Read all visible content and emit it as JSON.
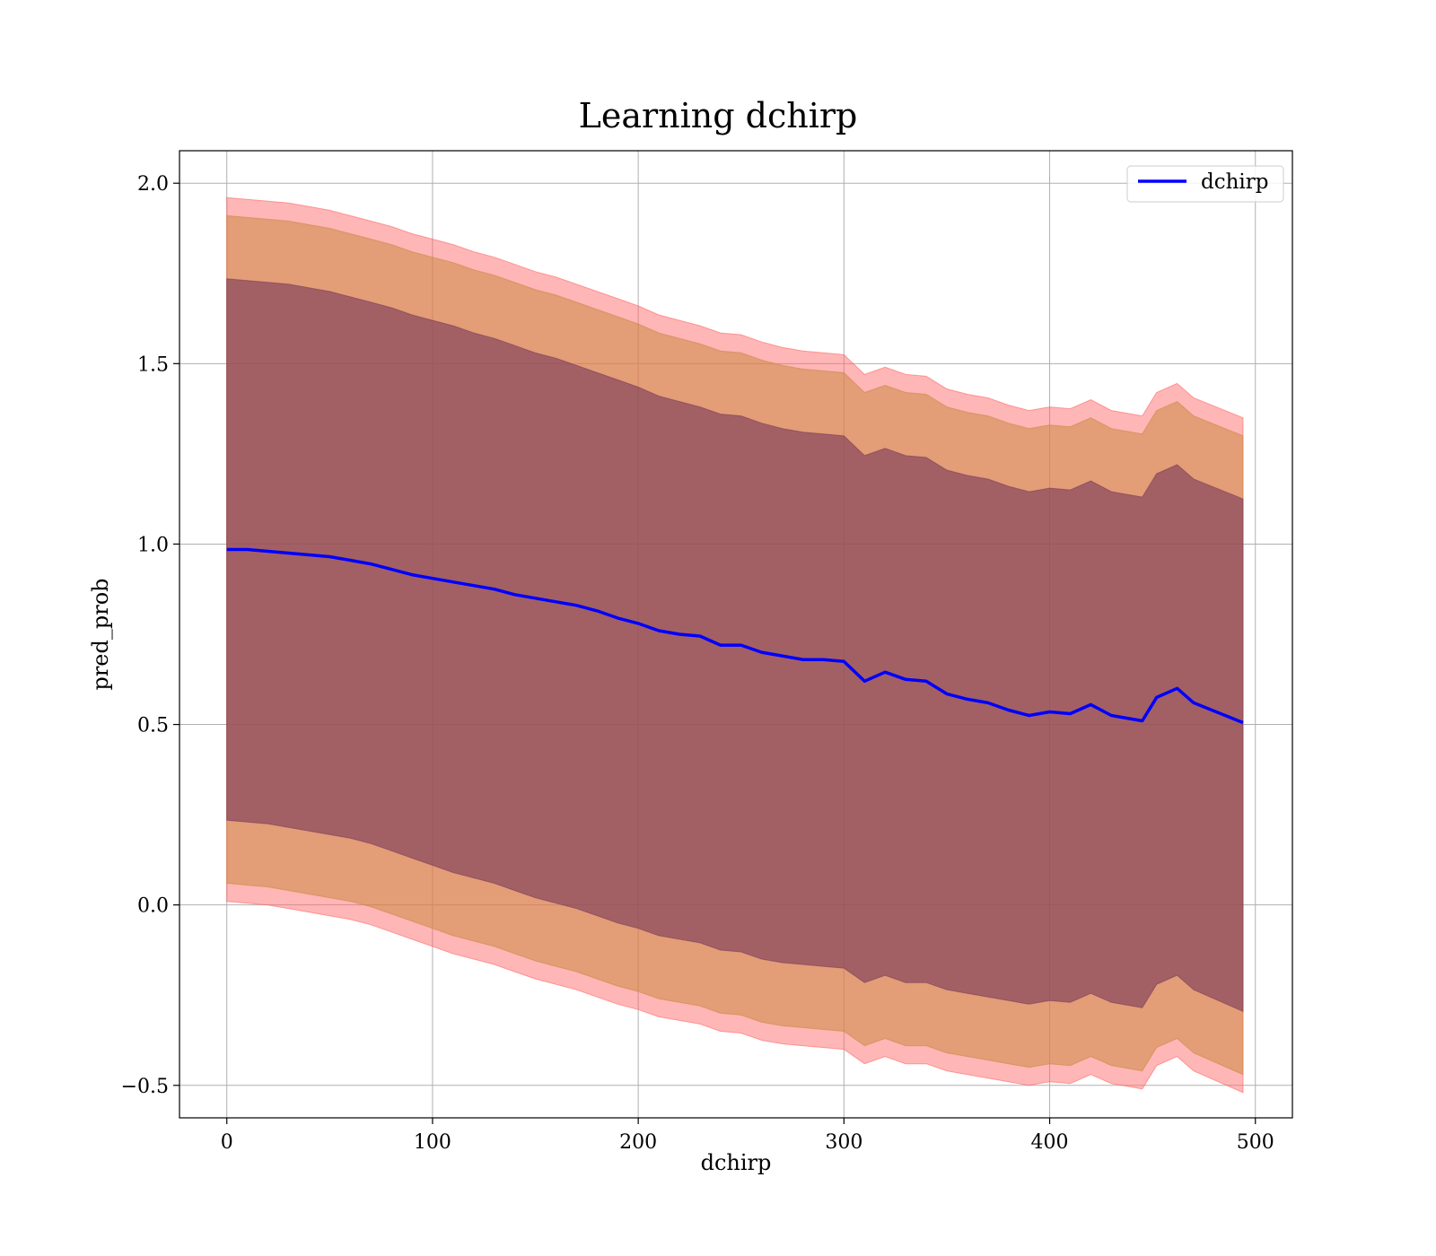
{
  "chart_data": {
    "type": "line",
    "title": "Learning dchirp",
    "xlabel": "dchirp",
    "ylabel": "pred_prob",
    "xlim": [
      -23,
      518
    ],
    "ylim": [
      -0.59,
      2.09
    ],
    "xticks": [
      0,
      100,
      200,
      300,
      400,
      500
    ],
    "yticks": [
      -0.5,
      0.0,
      0.5,
      1.0,
      1.5,
      2.0
    ],
    "xtick_labels": [
      "0",
      "100",
      "200",
      "300",
      "400",
      "500"
    ],
    "ytick_labels": [
      "−0.5",
      "0.0",
      "0.5",
      "1.0",
      "1.5",
      "2.0"
    ],
    "grid": true,
    "legend": {
      "placement": "top-right",
      "entries": [
        "dchirp"
      ]
    },
    "series": [
      {
        "name": "dchirp",
        "color": "#0000ff",
        "x": [
          0,
          10,
          20,
          30,
          40,
          50,
          60,
          70,
          80,
          90,
          100,
          110,
          120,
          130,
          140,
          150,
          160,
          170,
          180,
          190,
          200,
          210,
          220,
          230,
          240,
          250,
          260,
          270,
          280,
          290,
          300,
          310,
          320,
          330,
          340,
          350,
          360,
          370,
          380,
          390,
          400,
          410,
          420,
          430,
          440,
          445,
          452,
          462,
          470,
          494
        ],
        "values": [
          0.985,
          0.985,
          0.98,
          0.975,
          0.97,
          0.965,
          0.955,
          0.945,
          0.93,
          0.915,
          0.905,
          0.895,
          0.885,
          0.875,
          0.86,
          0.85,
          0.84,
          0.83,
          0.815,
          0.795,
          0.78,
          0.76,
          0.75,
          0.745,
          0.72,
          0.72,
          0.7,
          0.69,
          0.68,
          0.68,
          0.675,
          0.62,
          0.645,
          0.625,
          0.62,
          0.585,
          0.57,
          0.56,
          0.54,
          0.525,
          0.535,
          0.53,
          0.555,
          0.525,
          0.515,
          0.51,
          0.575,
          0.6,
          0.56,
          0.505
        ]
      }
    ],
    "bands": [
      {
        "color": "#ff6666",
        "opacity": 0.48,
        "lower": [
          0.01,
          0.005,
          0.0,
          -0.01,
          -0.02,
          -0.03,
          -0.04,
          -0.055,
          -0.075,
          -0.095,
          -0.115,
          -0.135,
          -0.15,
          -0.165,
          -0.185,
          -0.205,
          -0.22,
          -0.235,
          -0.255,
          -0.275,
          -0.29,
          -0.31,
          -0.32,
          -0.33,
          -0.35,
          -0.355,
          -0.375,
          -0.385,
          -0.39,
          -0.395,
          -0.4,
          -0.44,
          -0.42,
          -0.44,
          -0.44,
          -0.46,
          -0.47,
          -0.48,
          -0.49,
          -0.5,
          -0.49,
          -0.495,
          -0.47,
          -0.495,
          -0.505,
          -0.51,
          -0.445,
          -0.42,
          -0.46,
          -0.52
        ],
        "upper": [
          1.96,
          1.955,
          1.95,
          1.945,
          1.935,
          1.925,
          1.91,
          1.895,
          1.88,
          1.86,
          1.845,
          1.83,
          1.81,
          1.795,
          1.775,
          1.755,
          1.74,
          1.72,
          1.7,
          1.68,
          1.66,
          1.635,
          1.62,
          1.605,
          1.585,
          1.58,
          1.56,
          1.545,
          1.535,
          1.53,
          1.525,
          1.47,
          1.49,
          1.47,
          1.465,
          1.43,
          1.415,
          1.405,
          1.385,
          1.37,
          1.38,
          1.375,
          1.4,
          1.37,
          1.36,
          1.355,
          1.42,
          1.445,
          1.405,
          1.35
        ]
      },
      {
        "color": "#cc8844",
        "opacity": 0.55,
        "lower": [
          0.06,
          0.055,
          0.05,
          0.04,
          0.03,
          0.02,
          0.01,
          -0.005,
          -0.025,
          -0.045,
          -0.065,
          -0.085,
          -0.1,
          -0.115,
          -0.135,
          -0.155,
          -0.17,
          -0.185,
          -0.205,
          -0.225,
          -0.24,
          -0.26,
          -0.27,
          -0.28,
          -0.3,
          -0.305,
          -0.325,
          -0.335,
          -0.34,
          -0.345,
          -0.35,
          -0.39,
          -0.37,
          -0.39,
          -0.39,
          -0.41,
          -0.42,
          -0.43,
          -0.44,
          -0.45,
          -0.44,
          -0.445,
          -0.42,
          -0.445,
          -0.455,
          -0.46,
          -0.395,
          -0.37,
          -0.41,
          -0.47
        ],
        "upper": [
          1.91,
          1.905,
          1.9,
          1.895,
          1.885,
          1.875,
          1.86,
          1.845,
          1.83,
          1.81,
          1.795,
          1.78,
          1.76,
          1.745,
          1.725,
          1.705,
          1.69,
          1.67,
          1.65,
          1.63,
          1.61,
          1.585,
          1.57,
          1.555,
          1.535,
          1.53,
          1.51,
          1.495,
          1.485,
          1.48,
          1.475,
          1.42,
          1.44,
          1.42,
          1.415,
          1.38,
          1.365,
          1.355,
          1.335,
          1.32,
          1.33,
          1.325,
          1.35,
          1.32,
          1.31,
          1.305,
          1.37,
          1.395,
          1.355,
          1.3
        ]
      },
      {
        "color": "#7a3a5a",
        "opacity": 0.62,
        "lower": [
          0.235,
          0.23,
          0.225,
          0.215,
          0.205,
          0.195,
          0.185,
          0.17,
          0.15,
          0.13,
          0.11,
          0.09,
          0.075,
          0.06,
          0.04,
          0.02,
          0.005,
          -0.01,
          -0.03,
          -0.05,
          -0.065,
          -0.085,
          -0.095,
          -0.105,
          -0.125,
          -0.13,
          -0.15,
          -0.16,
          -0.165,
          -0.17,
          -0.175,
          -0.215,
          -0.195,
          -0.215,
          -0.215,
          -0.235,
          -0.245,
          -0.255,
          -0.265,
          -0.275,
          -0.265,
          -0.27,
          -0.245,
          -0.27,
          -0.28,
          -0.285,
          -0.22,
          -0.195,
          -0.235,
          -0.295
        ],
        "upper": [
          1.735,
          1.73,
          1.725,
          1.72,
          1.71,
          1.7,
          1.685,
          1.67,
          1.655,
          1.635,
          1.62,
          1.605,
          1.585,
          1.57,
          1.55,
          1.53,
          1.515,
          1.495,
          1.475,
          1.455,
          1.435,
          1.41,
          1.395,
          1.38,
          1.36,
          1.355,
          1.335,
          1.32,
          1.31,
          1.305,
          1.3,
          1.245,
          1.265,
          1.245,
          1.24,
          1.205,
          1.19,
          1.18,
          1.16,
          1.145,
          1.155,
          1.15,
          1.175,
          1.145,
          1.135,
          1.13,
          1.195,
          1.22,
          1.18,
          1.125
        ]
      }
    ]
  }
}
